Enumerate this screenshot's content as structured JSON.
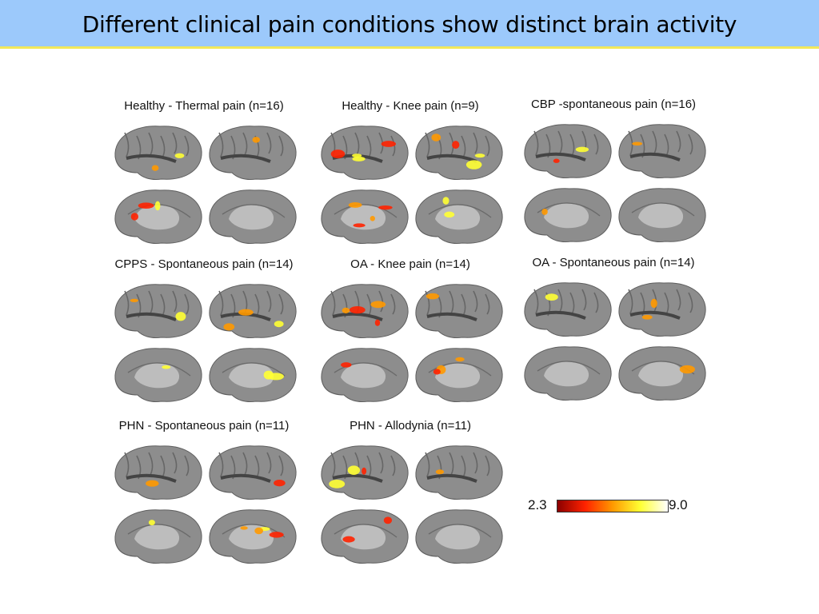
{
  "slide": {
    "title": "Different clinical pain conditions show distinct brain activity"
  },
  "panels": [
    {
      "label": "Healthy - Thermal pain (n=16)"
    },
    {
      "label": "Healthy - Knee pain (n=9)"
    },
    {
      "label": "CBP -spontaneous pain (n=16)"
    },
    {
      "label": "CPPS - Spontaneous pain (n=14)"
    },
    {
      "label": "OA - Knee pain (n=14)"
    },
    {
      "label": "OA - Spontaneous pain (n=14)"
    },
    {
      "label": "PHN - Spontaneous pain (n=11)"
    },
    {
      "label": "PHN - Allodynia (n=11)"
    }
  ],
  "colorbar": {
    "min_label": "2.3",
    "max_label": "9.0",
    "colors": [
      "#8b0000",
      "#ff2200",
      "#ff9900",
      "#ffff33",
      "#ffffff"
    ]
  }
}
